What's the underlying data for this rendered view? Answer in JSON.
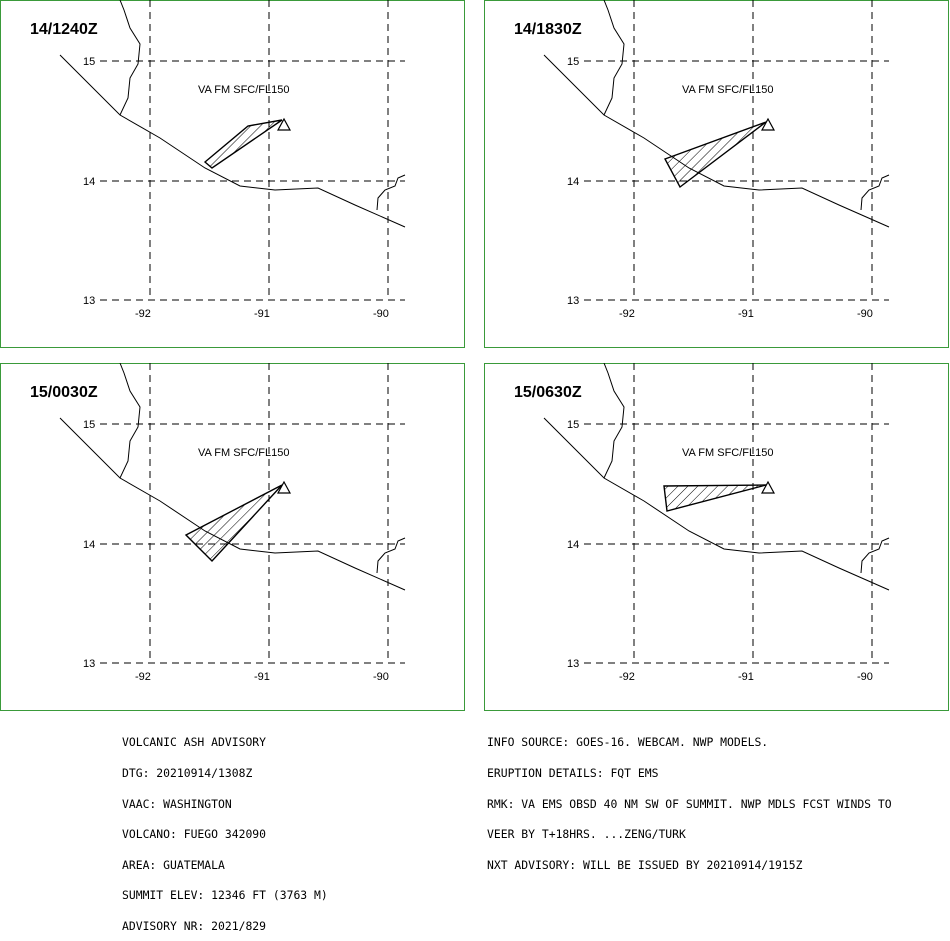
{
  "panels": [
    {
      "time": "14/1240Z",
      "va_label": "VA FM SFC/FL150"
    },
    {
      "time": "14/1830Z",
      "va_label": "VA FM SFC/FL150"
    },
    {
      "time": "15/0030Z",
      "va_label": "VA FM SFC/FL150"
    },
    {
      "time": "15/0630Z",
      "va_label": "VA FM SFC/FL150"
    }
  ],
  "axes": {
    "lon_ticks": [
      "-92",
      "-91",
      "-90"
    ],
    "lat_ticks": [
      "15",
      "14",
      "13"
    ]
  },
  "advisory_left": [
    "VOLCANIC ASH ADVISORY",
    "DTG: 20210914/1308Z",
    "VAAC: WASHINGTON",
    "VOLCANO: FUEGO 342090",
    "AREA: GUATEMALA",
    "SUMMIT ELEV: 12346 FT (3763 M)",
    "ADVISORY NR: 2021/829"
  ],
  "advisory_right": [
    "INFO SOURCE: GOES-16. WEBCAM. NWP MODELS.",
    "ERUPTION DETAILS: FQT EMS",
    "RMK: VA EMS OBSD 40 NM SW OF SUMMIT. NWP MDLS FCST WINDS TO",
    "VEER BY T+18HRS. ...ZENG/TURK",
    "NXT ADVISORY: WILL BE ISSUED BY 20210914/1915Z"
  ],
  "colors": {
    "frame": "#3a9a3a"
  }
}
